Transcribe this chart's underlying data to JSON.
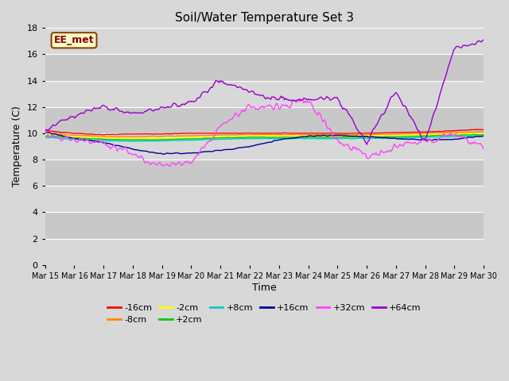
{
  "title": "Soil/Water Temperature Set 3",
  "xlabel": "Time",
  "ylabel": "Temperature (C)",
  "ylim": [
    0,
    18
  ],
  "yticks": [
    0,
    2,
    4,
    6,
    8,
    10,
    12,
    14,
    16,
    18
  ],
  "x_labels": [
    "Mar 15",
    "Mar 16",
    "Mar 17",
    "Mar 18",
    "Mar 19",
    "Mar 20",
    "Mar 21",
    "Mar 22",
    "Mar 23",
    "Mar 24",
    "Mar 25",
    "Mar 26",
    "Mar 27",
    "Mar 28",
    "Mar 29",
    "Mar 30"
  ],
  "watermark": "EE_met",
  "n_days": 16,
  "pts_per_day": 24,
  "series": {
    "-16cm": {
      "color": "#ff0000",
      "daily_means": [
        10.2,
        10.0,
        9.9,
        9.95,
        9.95,
        10.0,
        10.0,
        10.0,
        10.0,
        10.0,
        10.0,
        10.0,
        10.05,
        10.1,
        10.2,
        10.3
      ],
      "amplitude": 0.05
    },
    "-8cm": {
      "color": "#ff8800",
      "daily_means": [
        10.05,
        9.85,
        9.75,
        9.75,
        9.78,
        9.82,
        9.88,
        9.9,
        9.9,
        9.9,
        9.9,
        9.92,
        9.93,
        10.0,
        10.05,
        10.1
      ],
      "amplitude": 0.05
    },
    "-2cm": {
      "color": "#ffff00",
      "daily_means": [
        9.9,
        9.75,
        9.65,
        9.6,
        9.62,
        9.68,
        9.75,
        9.8,
        9.8,
        9.8,
        9.8,
        9.82,
        9.83,
        9.9,
        9.95,
        10.0
      ],
      "amplitude": 0.05
    },
    "+2cm": {
      "color": "#00cc00",
      "daily_means": [
        9.8,
        9.65,
        9.55,
        9.5,
        9.52,
        9.58,
        9.65,
        9.7,
        9.7,
        9.7,
        9.7,
        9.72,
        9.73,
        9.8,
        9.85,
        9.9
      ],
      "amplitude": 0.05
    },
    "+8cm": {
      "color": "#00cccc",
      "daily_means": [
        9.7,
        9.55,
        9.45,
        9.4,
        9.42,
        9.48,
        9.55,
        9.6,
        9.6,
        9.6,
        9.6,
        9.62,
        9.63,
        9.7,
        9.75,
        9.8
      ],
      "amplitude": 0.05
    },
    "+16cm": {
      "color": "#000099",
      "daily_means": [
        10.1,
        9.6,
        9.3,
        8.8,
        8.45,
        8.5,
        8.7,
        9.0,
        9.5,
        9.8,
        9.85,
        9.75,
        9.6,
        9.5,
        9.55,
        9.8
      ],
      "amplitude": 0.1
    },
    "+32cm": {
      "color": "#ff44ff",
      "daily_means": [
        9.7,
        9.5,
        9.3,
        8.5,
        7.5,
        7.8,
        10.5,
        12.0,
        12.0,
        12.5,
        9.5,
        8.2,
        9.0,
        9.3,
        10.0,
        9.0
      ],
      "amplitude": 0.8
    },
    "+64cm": {
      "color": "#9900cc",
      "daily_means": [
        10.2,
        11.3,
        12.0,
        11.5,
        12.0,
        12.3,
        14.0,
        13.2,
        12.6,
        12.5,
        12.7,
        9.3,
        13.2,
        9.4,
        16.5,
        17.0
      ],
      "amplitude": 0.5
    }
  },
  "legend_order": [
    "-16cm",
    "-8cm",
    "-2cm",
    "+2cm",
    "+8cm",
    "+16cm",
    "+32cm",
    "+64cm"
  ],
  "bg_color": "#d8d8d8",
  "plot_bg_color": "#d8d8d8",
  "grid_color": "#ffffff",
  "alternating_colors": [
    "#d8d8d8",
    "#c8c8c8"
  ]
}
